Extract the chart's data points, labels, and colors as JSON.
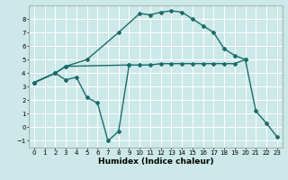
{
  "title": "",
  "xlabel": "Humidex (Indice chaleur)",
  "bg_color": "#cce8e8",
  "grid_color": "#ffffff",
  "line_color": "#1a6b6b",
  "xlim": [
    -0.5,
    23.5
  ],
  "ylim": [
    -1.5,
    9.0
  ],
  "xticks": [
    0,
    1,
    2,
    3,
    4,
    5,
    6,
    7,
    8,
    9,
    10,
    11,
    12,
    13,
    14,
    15,
    16,
    17,
    18,
    19,
    20,
    21,
    22,
    23
  ],
  "yticks": [
    -1,
    0,
    1,
    2,
    3,
    4,
    5,
    6,
    7,
    8
  ],
  "line1_x": [
    0,
    2,
    3,
    5,
    8,
    10,
    11,
    12,
    13,
    14,
    15,
    16,
    17,
    18,
    19,
    20,
    21,
    22,
    23
  ],
  "line1_y": [
    3.3,
    4.0,
    4.5,
    5.0,
    7.0,
    8.4,
    8.3,
    8.5,
    8.6,
    8.5,
    8.0,
    7.5,
    7.0,
    5.8,
    5.3,
    5.0,
    1.2,
    0.3,
    -0.7
  ],
  "line2_x": [
    0,
    2,
    3,
    9,
    10,
    11,
    12,
    13,
    14,
    15,
    16,
    17,
    18,
    19,
    20
  ],
  "line2_y": [
    3.3,
    4.0,
    4.5,
    4.6,
    4.6,
    4.6,
    4.7,
    4.7,
    4.7,
    4.7,
    4.7,
    4.7,
    4.7,
    4.7,
    5.0
  ],
  "line3_x": [
    0,
    2,
    3,
    4,
    5,
    6,
    7,
    8,
    9
  ],
  "line3_y": [
    3.3,
    4.0,
    3.5,
    3.7,
    2.2,
    1.8,
    -1.0,
    -0.3,
    4.6
  ],
  "markersize": 2.0,
  "linewidth": 1.0,
  "tick_fontsize": 5.0,
  "label_fontsize": 6.5
}
